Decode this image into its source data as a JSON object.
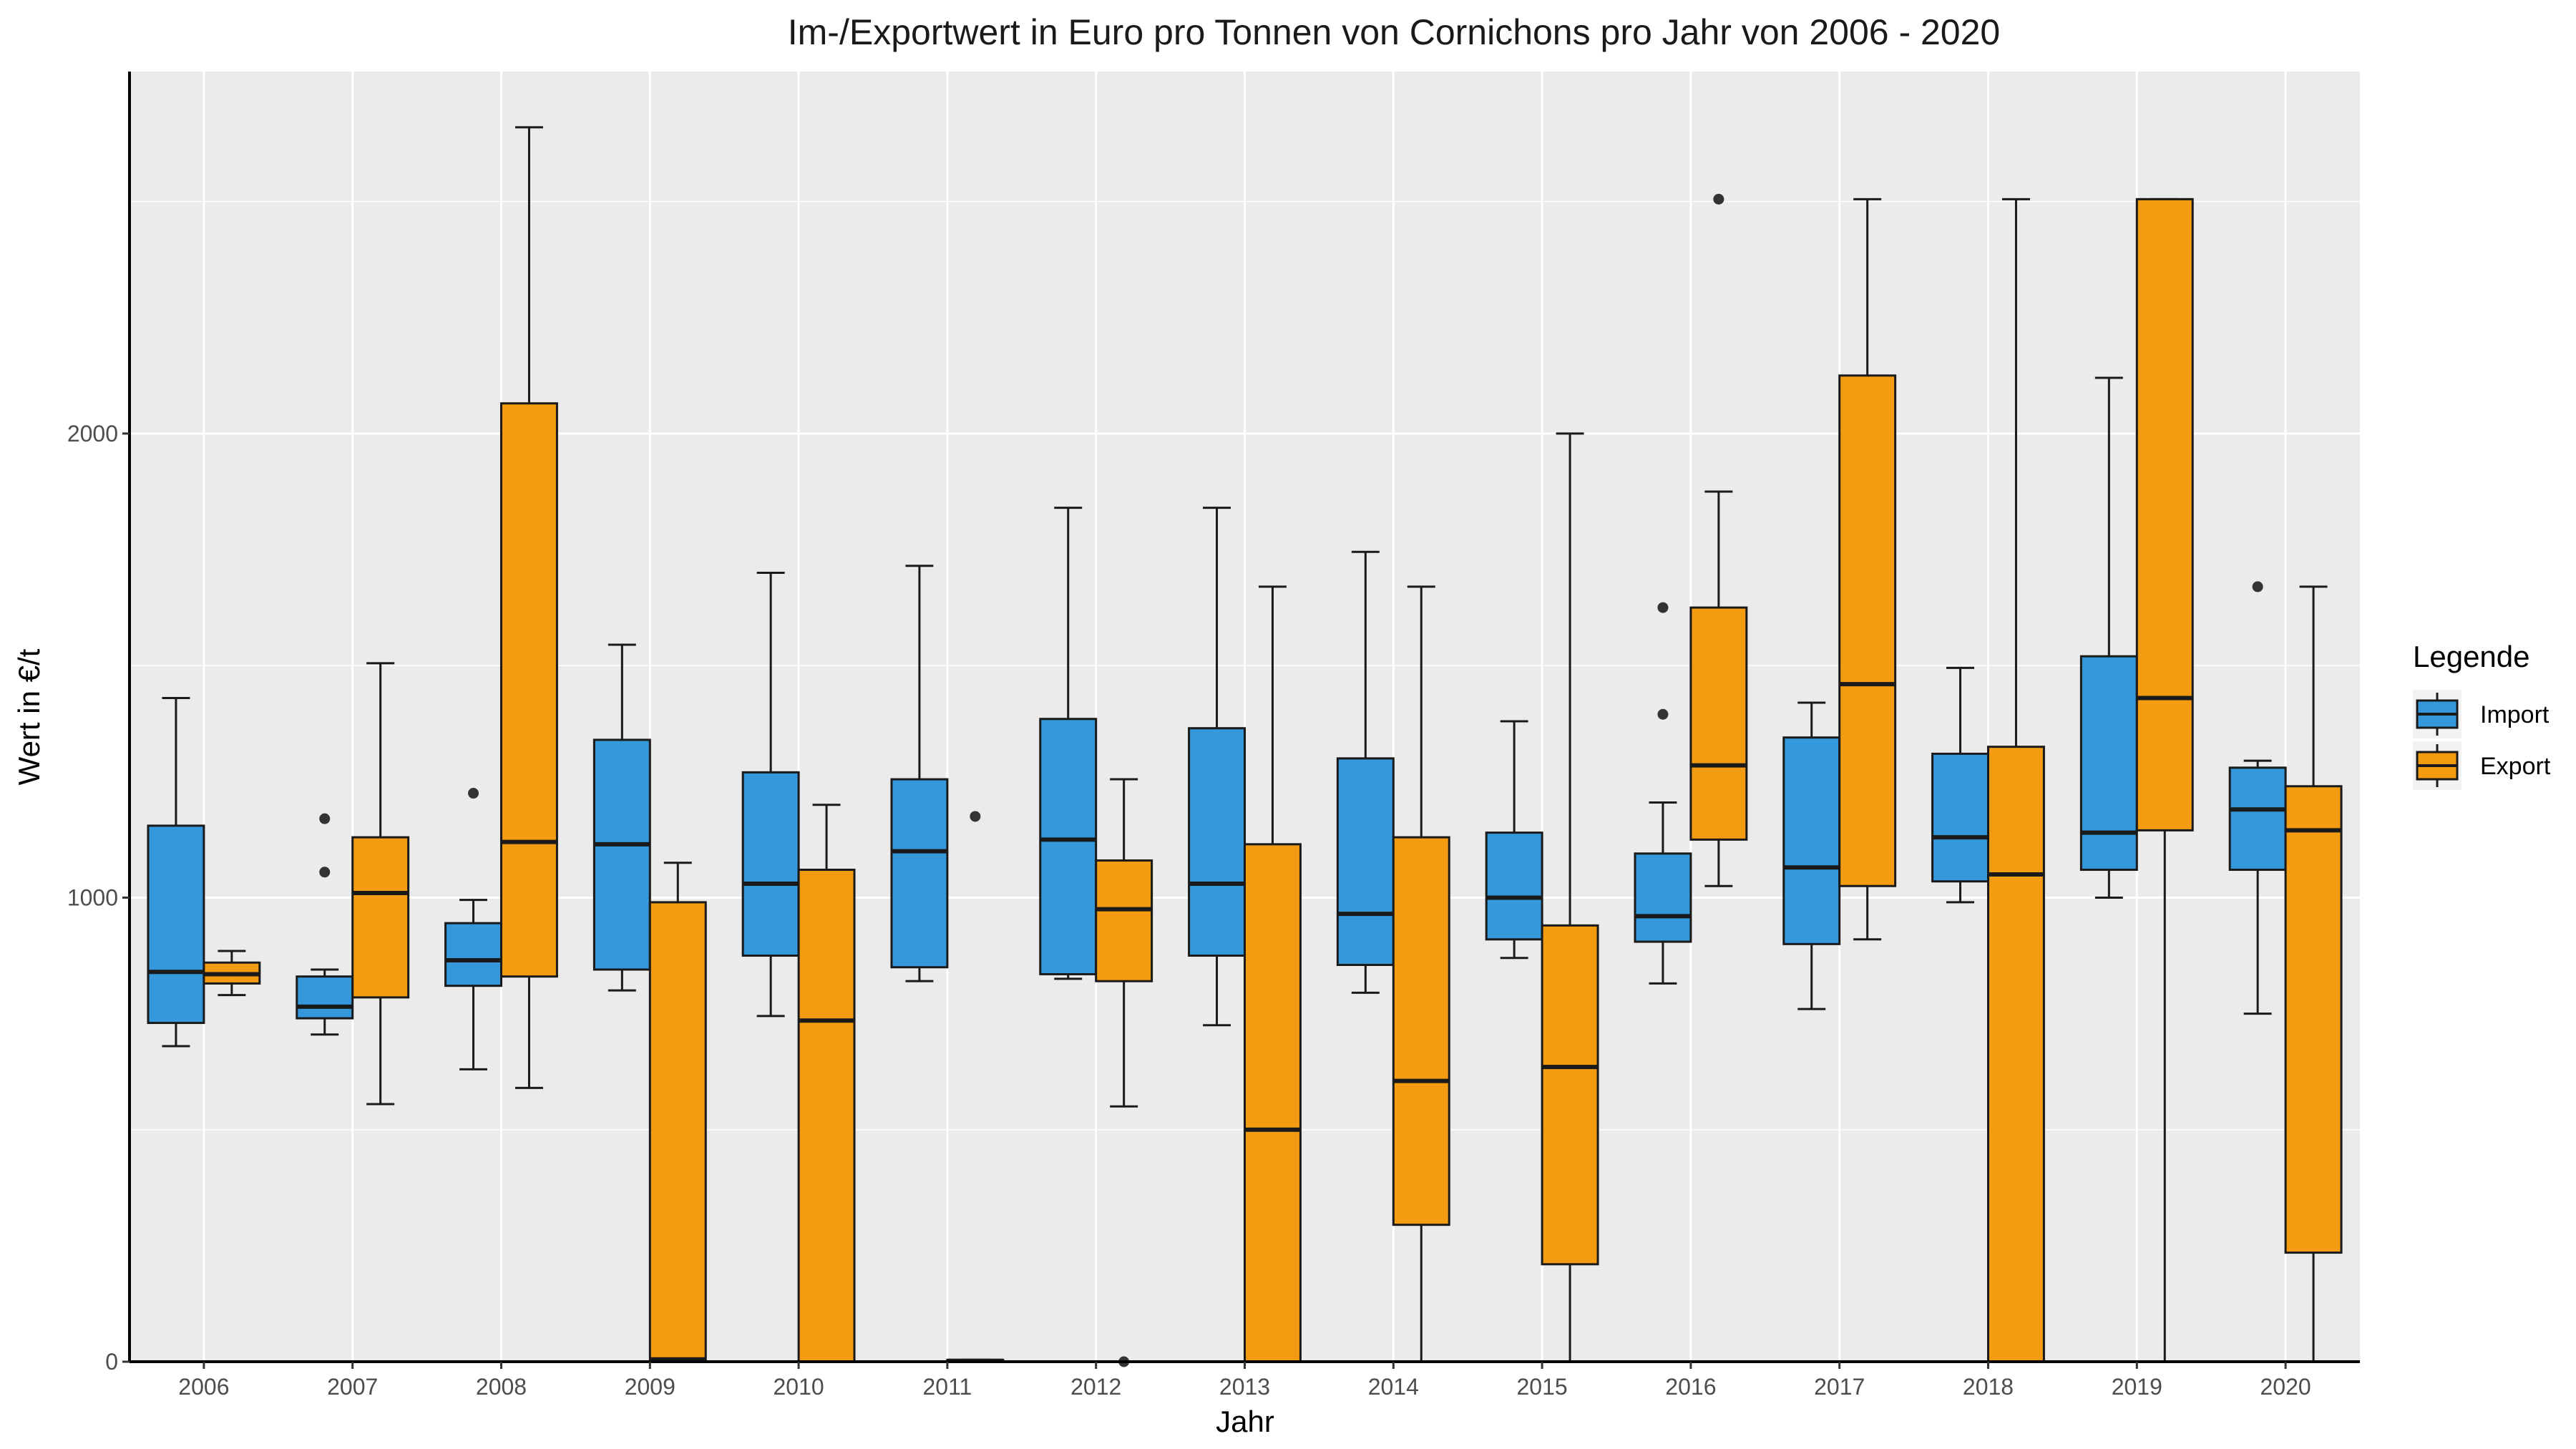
{
  "chart_data": {
    "type": "boxplot",
    "title": "Im-/Exportwert in Euro pro Tonnen von Cornichons pro Jahr von 2006 - 2020",
    "xlabel": "Jahr",
    "ylabel": "Wert in €/t",
    "ylim": [
      0,
      2780
    ],
    "yticks": [
      0,
      1000,
      2000
    ],
    "grid": true,
    "legend": {
      "title": "Legende",
      "position": "right"
    },
    "categories": [
      "2006",
      "2007",
      "2008",
      "2009",
      "2010",
      "2011",
      "2012",
      "2013",
      "2014",
      "2015",
      "2016",
      "2017",
      "2018",
      "2019",
      "2020"
    ],
    "series": [
      {
        "name": "Import",
        "color": "#3498DB",
        "boxes": [
          {
            "min": 680,
            "q1": 730,
            "median": 840,
            "q3": 1155,
            "max": 1430,
            "outliers": []
          },
          {
            "min": 705,
            "q1": 740,
            "median": 765,
            "q3": 830,
            "max": 845,
            "outliers": [
              1055,
              1170
            ]
          },
          {
            "min": 630,
            "q1": 810,
            "median": 865,
            "q3": 945,
            "max": 995,
            "outliers": [
              1225
            ]
          },
          {
            "min": 800,
            "q1": 845,
            "median": 1115,
            "q3": 1340,
            "max": 1545,
            "outliers": []
          },
          {
            "min": 745,
            "q1": 875,
            "median": 1030,
            "q3": 1270,
            "max": 1700,
            "outliers": []
          },
          {
            "min": 820,
            "q1": 850,
            "median": 1100,
            "q3": 1255,
            "max": 1715,
            "outliers": []
          },
          {
            "min": 825,
            "q1": 835,
            "median": 1125,
            "q3": 1385,
            "max": 1840,
            "outliers": []
          },
          {
            "min": 725,
            "q1": 875,
            "median": 1030,
            "q3": 1365,
            "max": 1840,
            "outliers": []
          },
          {
            "min": 795,
            "q1": 855,
            "median": 965,
            "q3": 1300,
            "max": 1745,
            "outliers": []
          },
          {
            "min": 870,
            "q1": 910,
            "median": 1000,
            "q3": 1140,
            "max": 1380,
            "outliers": []
          },
          {
            "min": 815,
            "q1": 905,
            "median": 960,
            "q3": 1095,
            "max": 1205,
            "outliers": [
              1395,
              1625
            ]
          },
          {
            "min": 760,
            "q1": 900,
            "median": 1065,
            "q3": 1345,
            "max": 1420,
            "outliers": []
          },
          {
            "min": 990,
            "q1": 1035,
            "median": 1130,
            "q3": 1310,
            "max": 1495,
            "outliers": []
          },
          {
            "min": 1000,
            "q1": 1060,
            "median": 1140,
            "q3": 1520,
            "max": 2120,
            "outliers": []
          },
          {
            "min": 750,
            "q1": 1060,
            "median": 1190,
            "q3": 1280,
            "max": 1295,
            "outliers": [
              1670
            ]
          }
        ]
      },
      {
        "name": "Export",
        "color": "#F39C12",
        "boxes": [
          {
            "min": 790,
            "q1": 815,
            "median": 835,
            "q3": 860,
            "max": 885,
            "outliers": []
          },
          {
            "min": 555,
            "q1": 785,
            "median": 1010,
            "q3": 1130,
            "max": 1505,
            "outliers": []
          },
          {
            "min": 590,
            "q1": 830,
            "median": 1120,
            "q3": 2065,
            "max": 2660,
            "outliers": []
          },
          {
            "min": 0,
            "q1": 0,
            "median": 5,
            "q3": 990,
            "max": 1075,
            "outliers": []
          },
          {
            "min": 0,
            "q1": 0,
            "median": 735,
            "q3": 1060,
            "max": 1200,
            "outliers": []
          },
          {
            "min": 0,
            "q1": 0,
            "median": 2,
            "q3": 4,
            "max": 4,
            "outliers": [
              1175
            ]
          },
          {
            "min": 550,
            "q1": 820,
            "median": 975,
            "q3": 1080,
            "max": 1255,
            "outliers": [
              0
            ]
          },
          {
            "min": 0,
            "q1": 0,
            "median": 500,
            "q3": 1115,
            "max": 1670,
            "outliers": []
          },
          {
            "min": 0,
            "q1": 295,
            "median": 605,
            "q3": 1130,
            "max": 1670,
            "outliers": []
          },
          {
            "min": 0,
            "q1": 210,
            "median": 635,
            "q3": 940,
            "max": 2000,
            "outliers": []
          },
          {
            "min": 1025,
            "q1": 1125,
            "median": 1285,
            "q3": 1625,
            "max": 1875,
            "outliers": [
              2505
            ]
          },
          {
            "min": 910,
            "q1": 1025,
            "median": 1460,
            "q3": 2125,
            "max": 2505,
            "outliers": []
          },
          {
            "min": 0,
            "q1": 0,
            "median": 1050,
            "q3": 1325,
            "max": 2505,
            "outliers": []
          },
          {
            "min": 0,
            "q1": 1145,
            "median": 1430,
            "q3": 2505,
            "max": 2505,
            "outliers": []
          },
          {
            "min": 0,
            "q1": 235,
            "median": 1145,
            "q3": 1240,
            "max": 1670,
            "outliers": []
          }
        ]
      }
    ]
  }
}
